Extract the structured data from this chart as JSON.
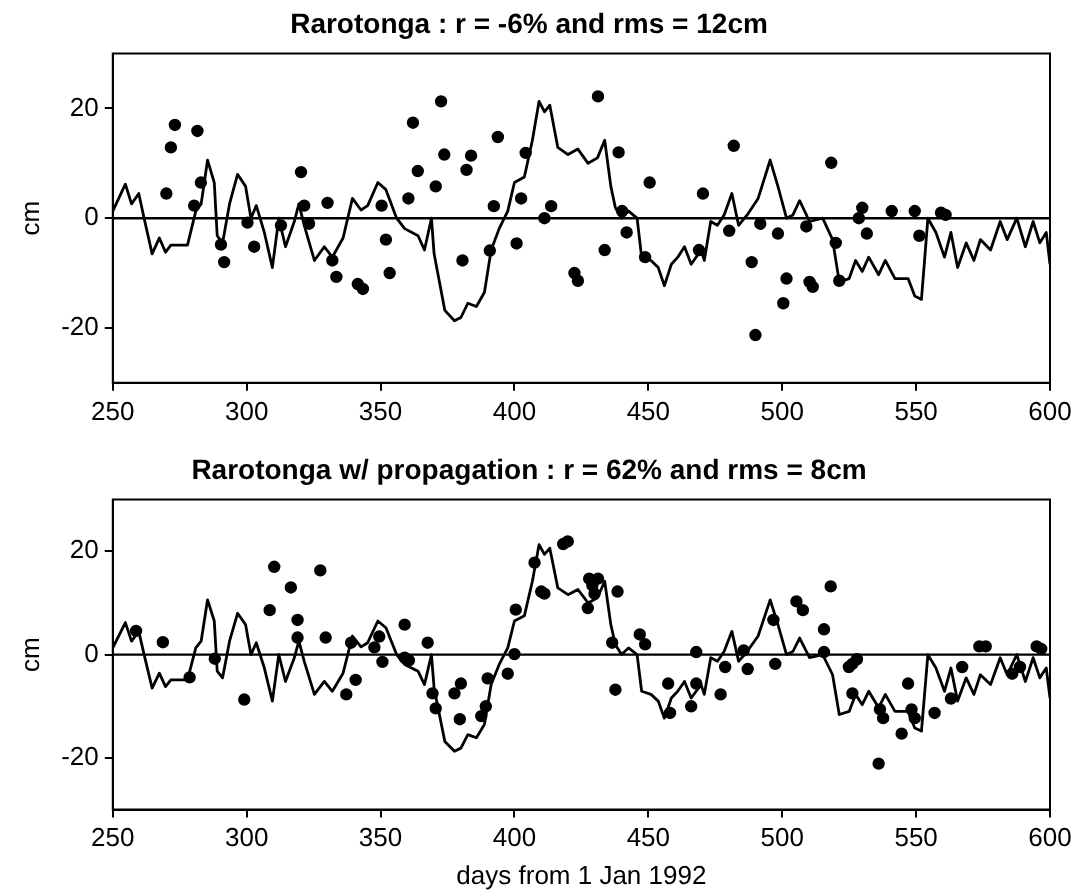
{
  "chart_data": [
    {
      "type": "line",
      "title": "Rarotonga : r = -6% and rms = 12cm",
      "ylabel": "cm",
      "xlim": [
        250,
        600
      ],
      "xticks": [
        250,
        300,
        350,
        400,
        450,
        500,
        550,
        600
      ],
      "ylim": [
        -30,
        30
      ],
      "yticks": [
        -20,
        0,
        20
      ],
      "grid": false,
      "legend": false,
      "ref_lines": [
        {
          "axis": "y",
          "value": 0,
          "color": "#000000"
        }
      ],
      "series": [
        {
          "type": "line",
          "color": "#000000",
          "line_style": "solid",
          "x": [
            250,
            254.7,
            257,
            259.7,
            261.7,
            264.7,
            267.4,
            269.7,
            271.7,
            277.9,
            281,
            283,
            285.4,
            287.9,
            289,
            291,
            293.6,
            296.6,
            299.6,
            301.6,
            303.6,
            306.6,
            309.6,
            312,
            314.5,
            317.8,
            319.5,
            321.5,
            325.3,
            329,
            332,
            336,
            339.5,
            342.7,
            345.2,
            349,
            352,
            356,
            359,
            364,
            366.4,
            369,
            370,
            374,
            377.6,
            380,
            382.6,
            385.8,
            388.8,
            391.3,
            394.3,
            397.5,
            400,
            403.7,
            406.7,
            409.2,
            411.2,
            413.2,
            416.2,
            420,
            423.7,
            427.5,
            431,
            433.7,
            436,
            437.7,
            440,
            442.6,
            445.8,
            447.5,
            451,
            453.7,
            456,
            458.6,
            461,
            463.5,
            466,
            469.7,
            470.9,
            473.3,
            475.8,
            478.3,
            481.2,
            483.7,
            486.9,
            491,
            495.5,
            498.4,
            501.6,
            504,
            506.5,
            510.2,
            515.1,
            518.8,
            521.3,
            525,
            527.4,
            529.9,
            532.3,
            536,
            538.5,
            542.1,
            547,
            549.5,
            552,
            554.4,
            557.4,
            560.6,
            563,
            565.5,
            568.7,
            571.6,
            574,
            577.8,
            581.4,
            584,
            587.6,
            590.8,
            593.7,
            596.2,
            598.6,
            600
          ],
          "values": [
            1.3,
            6.2,
            2.6,
            4.5,
            0,
            -6.5,
            -3.6,
            -6.2,
            -4.9,
            -4.9,
            1.3,
            2.6,
            10.6,
            6.5,
            -3.2,
            -4.5,
            2.6,
            8,
            5.8,
            0,
            2.3,
            -2.6,
            -9,
            0,
            -5.2,
            -0.6,
            2.6,
            -1.3,
            -7.7,
            -5.2,
            -7.1,
            -3.6,
            3.6,
            1.5,
            2.3,
            6.5,
            5.2,
            0,
            -1.9,
            -3.2,
            -5.8,
            0,
            -6.5,
            -16.8,
            -18.7,
            -18.1,
            -15.5,
            -16.1,
            -13.5,
            -5.8,
            -1.9,
            1.3,
            6.5,
            7.5,
            14.2,
            21.3,
            19.4,
            20.6,
            12.9,
            11.6,
            12.6,
            10,
            11,
            14.2,
            5.8,
            1.9,
            0,
            1.3,
            0,
            -7.1,
            -7.7,
            -9,
            -12.3,
            -8.4,
            -7.1,
            -5.2,
            -8.4,
            -5.8,
            -7.7,
            -0.6,
            -1.3,
            0.6,
            4.5,
            -1.3,
            0.6,
            3.6,
            10.6,
            5.8,
            0,
            0.6,
            3.2,
            -0.6,
            0,
            -3.9,
            -11.6,
            -11,
            -7.7,
            -9.7,
            -7.1,
            -10.3,
            -7.7,
            -11,
            -11,
            -14.2,
            -14.8,
            0,
            -2.6,
            -7.1,
            -2.6,
            -9,
            -4.5,
            -7.7,
            -3.9,
            -5.8,
            -0.6,
            -3.9,
            0,
            -5.2,
            -0.6,
            -4.5,
            -2.6,
            -8.4
          ]
        },
        {
          "type": "scatter",
          "color": "#000000",
          "marker": "circle",
          "x": [
            270,
            271.7,
            273.2,
            280.4,
            281.6,
            282.9,
            290.4,
            291.6,
            300.3,
            302.8,
            312.8,
            320.3,
            321.5,
            323.3,
            330.2,
            332,
            333.5,
            341.5,
            343.4,
            350.4,
            352,
            353.4,
            360.4,
            362.1,
            363.9,
            370.6,
            372.6,
            373.8,
            380.6,
            382.1,
            383.8,
            390.8,
            392.3,
            393.8,
            400.8,
            402.5,
            404.2,
            411.2,
            413.7,
            422.4,
            423.7,
            431.2,
            433.7,
            438.9,
            440.2,
            441.9,
            448.8,
            450.5,
            468.9,
            470.4,
            480.2,
            481.9,
            488.6,
            490,
            491.8,
            498.4,
            500.4,
            501.6,
            509,
            510.2,
            511.4,
            518.3,
            520,
            521.3,
            528.6,
            529.9,
            531.6,
            540.9,
            549.5,
            551.2,
            559.3,
            561
          ],
          "values": [
            4.5,
            12.9,
            17,
            2.3,
            15.9,
            6.5,
            -4.8,
            -8,
            -0.8,
            -5.2,
            -1.3,
            8.4,
            2.3,
            -1,
            2.8,
            -7.7,
            -10.7,
            -12,
            -12.9,
            2.3,
            -3.9,
            -10,
            3.6,
            17.4,
            8.6,
            5.8,
            21.3,
            11.6,
            -7.7,
            8.8,
            11.4,
            -5.9,
            2.2,
            14.8,
            -4.6,
            3.6,
            11.9,
            0,
            2.2,
            -10,
            -11.4,
            22.2,
            -5.8,
            12,
            1.3,
            -2.6,
            -7.1,
            6.5,
            -5.8,
            4.5,
            -2.3,
            13.2,
            -8,
            -21.3,
            -1,
            -2.8,
            -15.5,
            -11,
            -1.5,
            -11.6,
            -12.5,
            10.1,
            -4.5,
            -11.4,
            0,
            1.9,
            -2.8,
            1.3,
            1.3,
            -3.2,
            1,
            0.6
          ]
        }
      ]
    },
    {
      "type": "line",
      "title": "Rarotonga w/ propagation : r = 62% and rms = 8cm",
      "xlabel": "days from 1 Jan 1992",
      "ylabel": "cm",
      "xlim": [
        250,
        600
      ],
      "xticks": [
        250,
        300,
        350,
        400,
        450,
        500,
        550,
        600
      ],
      "ylim": [
        -30,
        30
      ],
      "yticks": [
        -20,
        0,
        20
      ],
      "grid": false,
      "legend": false,
      "ref_lines": [
        {
          "axis": "y",
          "value": 0,
          "color": "#000000"
        }
      ],
      "series": [
        {
          "type": "line",
          "color": "#000000",
          "line_style": "solid",
          "x": [
            250,
            254.7,
            257,
            259.7,
            261.7,
            264.7,
            267.4,
            269.7,
            271.7,
            277.9,
            281,
            283,
            285.4,
            287.9,
            289,
            291,
            293.6,
            296.6,
            299.6,
            301.6,
            303.6,
            306.6,
            309.6,
            312,
            314.5,
            317.8,
            319.5,
            321.5,
            325.3,
            329,
            332,
            336,
            339.5,
            342.7,
            345.2,
            349,
            352,
            356,
            359,
            364,
            366.4,
            369,
            370,
            374,
            377.6,
            380,
            382.6,
            385.8,
            388.8,
            391.3,
            394.3,
            397.5,
            400,
            403.7,
            406.7,
            409.2,
            411.2,
            413.2,
            416.2,
            420,
            423.7,
            427.5,
            431,
            433.7,
            436,
            437.7,
            440,
            442.6,
            445.8,
            447.5,
            451,
            453.7,
            456,
            458.6,
            461,
            463.5,
            466,
            469.7,
            470.9,
            473.3,
            475.8,
            478.3,
            481.2,
            483.7,
            486.9,
            491,
            495.5,
            498.4,
            501.6,
            504,
            506.5,
            510.2,
            515.1,
            518.8,
            521.3,
            525,
            527.4,
            529.9,
            532.3,
            536,
            538.5,
            542.1,
            547,
            549.5,
            552,
            554.4,
            557.4,
            560.6,
            563,
            565.5,
            568.7,
            571.6,
            574,
            577.8,
            581.4,
            584,
            587.6,
            590.8,
            593.7,
            596.2,
            598.6,
            600
          ],
          "values": [
            1.3,
            6.2,
            2.6,
            4.5,
            0,
            -6.5,
            -3.6,
            -6.2,
            -4.9,
            -4.9,
            1.3,
            2.6,
            10.6,
            6.5,
            -3.2,
            -4.5,
            2.6,
            8,
            5.8,
            0,
            2.3,
            -2.6,
            -9,
            0,
            -5.2,
            -0.6,
            2.6,
            -1.3,
            -7.7,
            -5.2,
            -7.1,
            -3.6,
            3.6,
            1.5,
            2.3,
            6.5,
            5.2,
            0,
            -1.9,
            -3.2,
            -5.8,
            0,
            -6.5,
            -16.8,
            -18.7,
            -18.1,
            -15.5,
            -16.1,
            -13.5,
            -5.8,
            -1.9,
            1.3,
            6.5,
            7.5,
            14.2,
            21.3,
            19.4,
            20.6,
            12.9,
            11.6,
            12.6,
            10,
            11,
            14.2,
            5.8,
            1.9,
            0,
            1.3,
            0,
            -7.1,
            -7.7,
            -9,
            -12.3,
            -8.4,
            -7.1,
            -5.2,
            -8.4,
            -5.8,
            -7.7,
            -0.6,
            -1.3,
            0.6,
            4.5,
            -1.3,
            0.6,
            3.6,
            10.6,
            5.8,
            0,
            0.6,
            3.2,
            -0.6,
            0,
            -3.9,
            -11.6,
            -11,
            -7.7,
            -9.7,
            -7.1,
            -10.3,
            -7.7,
            -11,
            -11,
            -14.2,
            -14.8,
            0,
            -2.6,
            -7.1,
            -2.6,
            -9,
            -4.5,
            -7.7,
            -3.9,
            -5.8,
            -0.6,
            -3.9,
            0,
            -5.2,
            -0.6,
            -4.5,
            -2.6,
            -8.4
          ]
        },
        {
          "type": "scatter",
          "color": "#000000",
          "marker": "circle",
          "x": [
            258.7,
            268.7,
            278.7,
            288.1,
            299.1,
            308.6,
            310.3,
            316.5,
            319,
            319,
            327.5,
            329.5,
            337.2,
            339,
            340.7,
            347.7,
            349.5,
            350.7,
            359,
            359,
            360.6,
            367.6,
            369.4,
            370.6,
            377.6,
            380,
            379.6,
            387.6,
            389.3,
            390,
            397.5,
            400,
            400.5,
            407.5,
            410,
            411.2,
            418.2,
            419.9,
            427.4,
            429.9,
            431.2,
            427.9,
            429.1,
            438.5,
            437.7,
            436.5,
            446.8,
            448.8,
            457.4,
            458.1,
            466,
            467.9,
            467.9,
            477,
            478.7,
            485.6,
            487.1,
            496.7,
            497.4,
            505.3,
            507.7,
            515.6,
            515.6,
            518.1,
            524.9,
            526.2,
            527.9,
            526.2,
            536.5,
            537.7,
            536,
            544.6,
            547,
            548.3,
            549.5,
            556.9,
            563,
            567.2,
            573.6,
            576,
            585.9,
            588.8,
            595,
            596.7
          ],
          "values": [
            4.6,
            2.4,
            -4.4,
            -0.8,
            -8.7,
            8.6,
            17,
            13,
            3.3,
            6.7,
            16.3,
            3.3,
            -7.7,
            2.3,
            -4.9,
            1.4,
            3.5,
            -1.4,
            5.8,
            -0.6,
            -1.1,
            2.3,
            -7.5,
            -10.4,
            -7.5,
            -5.6,
            -12.5,
            -11.9,
            -10,
            -4.6,
            -3.7,
            0.1,
            8.7,
            17.8,
            12.2,
            11.8,
            21.4,
            21.9,
            9,
            11.8,
            14.7,
            14.7,
            13.4,
            12.2,
            -6.8,
            2.3,
            3.9,
            2,
            -5.6,
            -11.3,
            -10,
            -5.6,
            0.5,
            -7.7,
            -2.4,
            0.8,
            -2.8,
            6.7,
            -1.8,
            10.3,
            8.6,
            4.9,
            0.5,
            13.2,
            -2.4,
            -1.8,
            -0.9,
            -7.5,
            -10.6,
            -12.3,
            -21.1,
            -15.3,
            -5.6,
            -10.6,
            -12.3,
            -11.3,
            -8.5,
            -2.4,
            1.6,
            1.6,
            -3.7,
            -2.4,
            1.6,
            1.1
          ]
        }
      ]
    }
  ]
}
